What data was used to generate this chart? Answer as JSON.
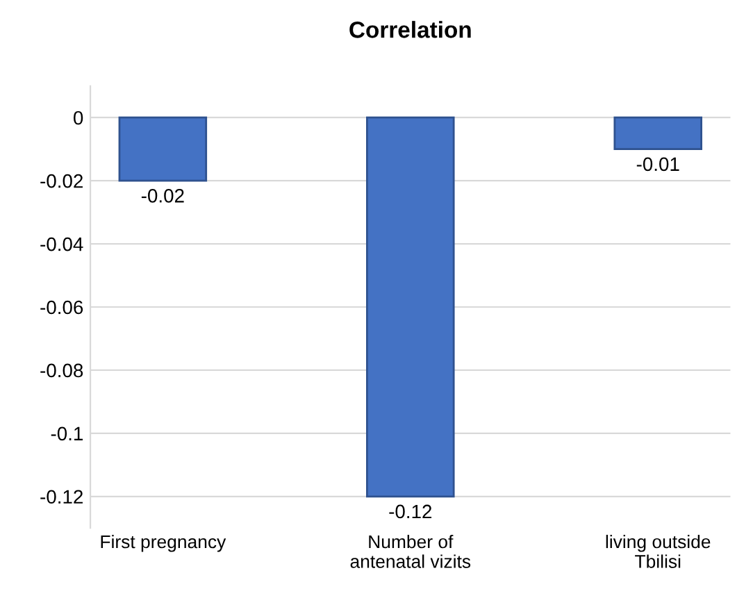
{
  "chart_data": {
    "type": "bar",
    "title": "Correlation",
    "categories": [
      "First pregnancy",
      "Number of\nantenatal vizits",
      "living outside\nTbilisi"
    ],
    "values": [
      -0.02,
      -0.12,
      -0.01
    ],
    "color": "#4472c4",
    "ylim": [
      -0.13,
      0.01
    ],
    "yticks": [
      0,
      -0.02,
      -0.04,
      -0.06,
      -0.08,
      -0.1,
      -0.12
    ],
    "grid": "y",
    "data_labels": true
  }
}
